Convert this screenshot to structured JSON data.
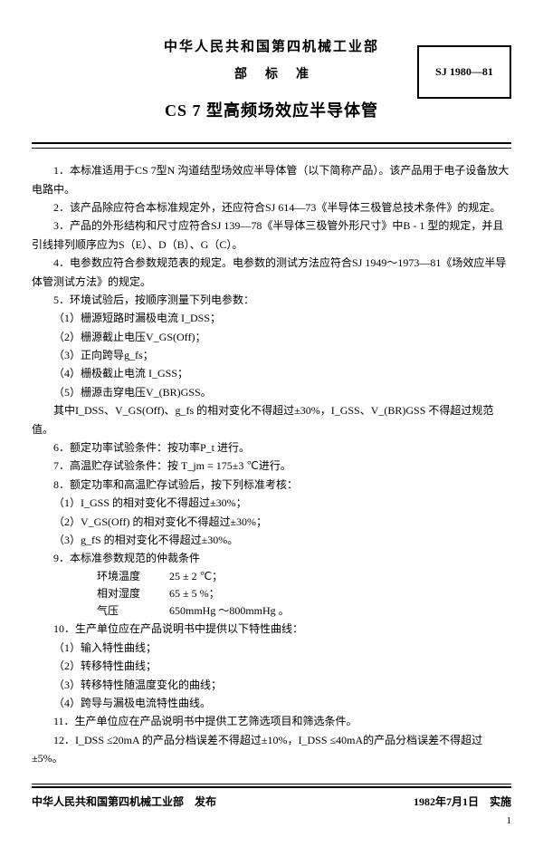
{
  "header": {
    "org": "中华人民共和国第四机械工业部",
    "subline": "部标准",
    "title": "CS 7 型高频场效应半导体管",
    "code": "SJ 1980—81"
  },
  "paragraphs": {
    "p1": "1．本标准适用于CS 7型N 沟道结型场效应半导体管（以下简称产品）。该产品用于电子设备放大电路中。",
    "p2": "2．该产品除应符合本标准规定外，还应符合SJ 614—73《半导体三极管总技术条件》的规定。",
    "p3": "3．产品的外形结构和尺寸应符合SJ 139—78《半导体三极管外形尺寸》中B - 1 型的规定，并且引线排列顺序应为S（E）、D（B）、G（C）。",
    "p4": "4．电参数应符合参数规范表的规定。电参数的测试方法应符合SJ 1949～1973—81《场效应半导体管测试方法》的规定。",
    "p5": "5．环境试验后，按顺序测量下列电参数：",
    "p5_1": "（1）栅源短路时漏极电流 I_DSS；",
    "p5_2": "（2）栅源截止电压V_GS(Off)；",
    "p5_3": "（3）正向跨导g_fs；",
    "p5_4": "（4）栅极截止电流 I_GSS；",
    "p5_5": "（5）栅源击穿电压V_(BR)GSS。",
    "p5_note": "其中I_DSS、V_GS(Off)、g_fs 的相对变化不得超过±30%，I_GSS、V_(BR)GSS 不得超过规范值。",
    "p6": "6．额定功率试验条件：按功率P_t 进行。",
    "p7": "7．高温贮存试验条件：按 T_jm = 175±3 ℃进行。",
    "p8": "8．额定功率和高温贮存试验后，按下列标准考核：",
    "p8_1": "（1）I_GSS 的相对变化不得超过±30%；",
    "p8_2": "（2）V_GS(Off) 的相对变化不得超过±30%；",
    "p8_3": "（3）g_fS 的相对变化不得超过±30%。",
    "p9": "9．本标准参数规范的仲裁条件",
    "env": {
      "temp_label": "环境温度",
      "temp_val": "25 ± 2 ℃；",
      "hum_label": "相对湿度",
      "hum_val": "65 ± 5 %；",
      "press_label": "气压",
      "press_val": "650mmHg ～800mmHg 。"
    },
    "p10": "10．生产单位应在产品说明书中提供以下特性曲线：",
    "p10_1": "（1）输入特性曲线；",
    "p10_2": "（2）转移特性曲线；",
    "p10_3": "（3）转移特性随温度变化的曲线；",
    "p10_4": "（4）跨导与漏极电流特性曲线。",
    "p11": "11．生产单位应在产品说明书中提供工艺筛选项目和筛选条件。",
    "p12": "12．I_DSS ≤20mA 的产品分档误差不得超过±10%，I_DSS ≤40mA的产品分档误差不得超过±5%。"
  },
  "footer": {
    "left": "中华人民共和国第四机械工业部　发布",
    "right": "1982年7月1日　实施",
    "page": "1"
  }
}
